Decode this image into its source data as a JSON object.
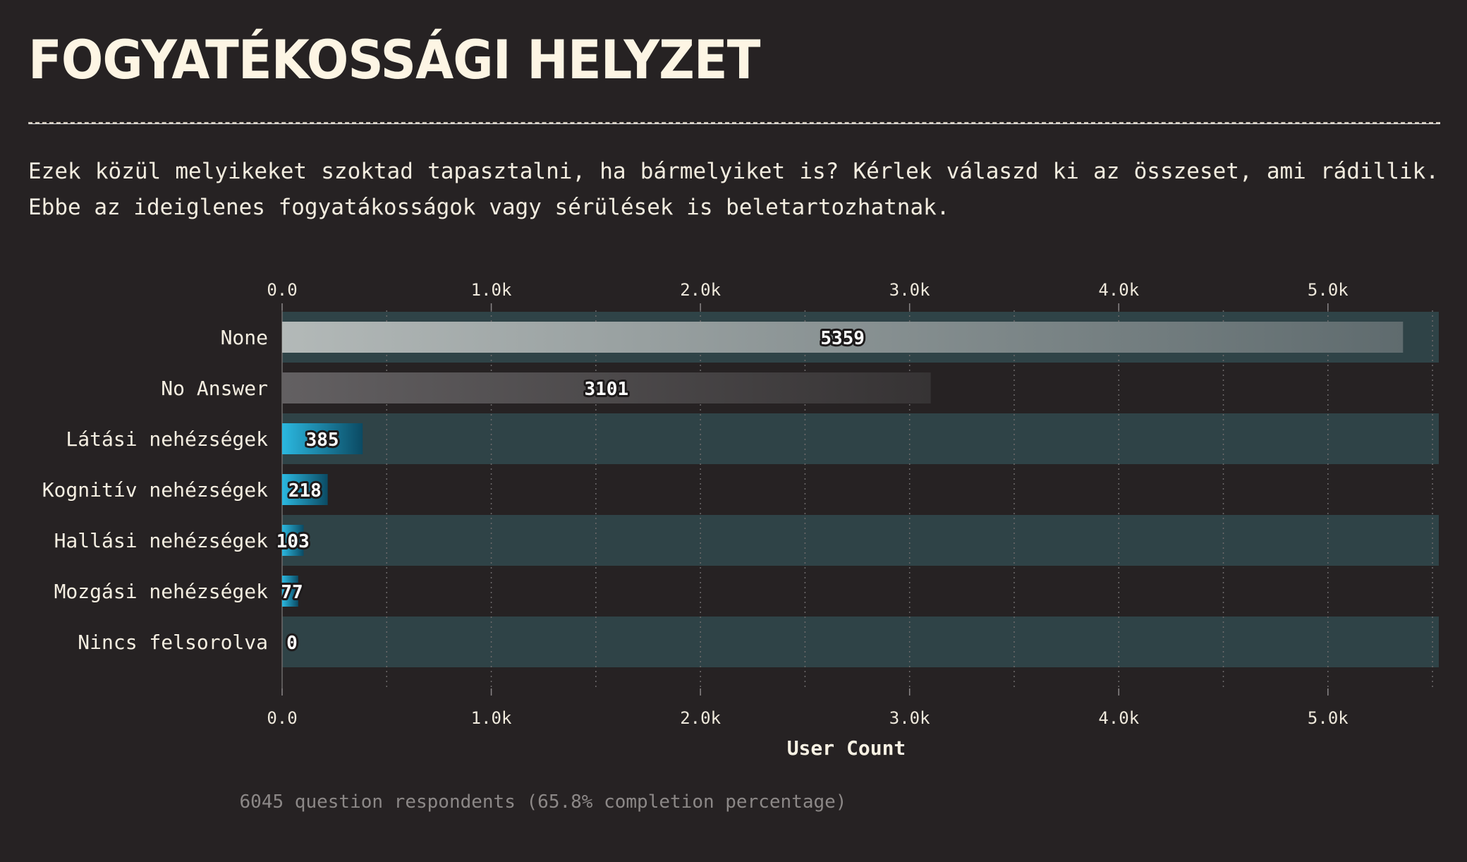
{
  "header": {
    "title": "FOGYATÉKOSSÁGI HELYZET",
    "question": "Ezek közül melyikeket szoktad tapasztalni, ha bármelyiket is? Kérlek válaszd ki az összeset, ami rádillik. Ebbe az ideiglenes fogyatákosságok vagy sérülések is beletartozhatnak."
  },
  "chart_data": {
    "type": "bar",
    "orientation": "horizontal",
    "categories": [
      "None",
      "No Answer",
      "Látási nehézségek",
      "Kognitív nehézségek",
      "Hallási nehézségek",
      "Mozgási nehézségek",
      "Nincs felsorolva"
    ],
    "values": [
      5359,
      3101,
      385,
      218,
      103,
      77,
      0
    ],
    "xlabel": "User Count",
    "xlim": [
      0,
      5530
    ],
    "x_ticks": [
      0,
      1000,
      2000,
      3000,
      4000,
      5000
    ],
    "x_tick_labels": [
      "0.0",
      "1.0k",
      "2.0k",
      "3.0k",
      "4.0k",
      "5.0k"
    ],
    "axis_position": "top-and-bottom",
    "grid": "vertical-dotted",
    "colors": {
      "band": "#2f4347",
      "none_start": "#b3b9b8",
      "none_end": "#5f6b6e",
      "noanswer_start": "#636062",
      "noanswer_end": "#363334",
      "option_start": "#2bb8e0",
      "option_end": "#0b4a63"
    }
  },
  "footer": {
    "note": "6045 question respondents (65.8% completion percentage)"
  }
}
